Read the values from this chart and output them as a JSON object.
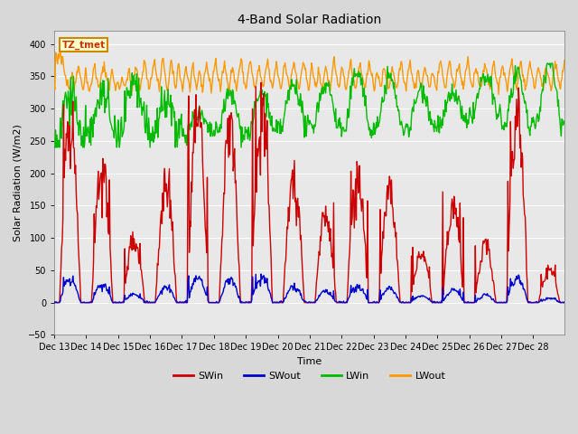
{
  "title": "4-Band Solar Radiation",
  "xlabel": "Time",
  "ylabel": "Solar Radiation (W/m2)",
  "ylim": [
    -50,
    420
  ],
  "background_color": "#d8d8d8",
  "plot_bg_color": "#e8e8e8",
  "grid_color": "#ffffff",
  "label_box_text": "TZ_tmet",
  "label_box_facecolor": "#ffffcc",
  "label_box_edgecolor": "#cc8800",
  "series": {
    "SWin": {
      "color": "#cc0000",
      "lw": 1.0
    },
    "SWout": {
      "color": "#0000cc",
      "lw": 1.0
    },
    "LWin": {
      "color": "#00bb00",
      "lw": 1.0
    },
    "LWout": {
      "color": "#ff9900",
      "lw": 1.0
    }
  },
  "yticks": [
    -50,
    0,
    50,
    100,
    150,
    200,
    250,
    300,
    350,
    400
  ],
  "xtick_labels": [
    "Dec 13",
    "Dec 14",
    "Dec 15",
    "Dec 16",
    "Dec 17",
    "Dec 18",
    "Dec 19",
    "Dec 20",
    "Dec 21",
    "Dec 22",
    "Dec 23",
    "Dec 24",
    "Dec 25",
    "Dec 26",
    "Dec 27",
    "Dec 28"
  ],
  "n_days": 16,
  "pts_per_day": 48,
  "seed": 42,
  "title_fontsize": 10,
  "axis_label_fontsize": 8,
  "tick_fontsize": 7,
  "legend_fontsize": 8
}
